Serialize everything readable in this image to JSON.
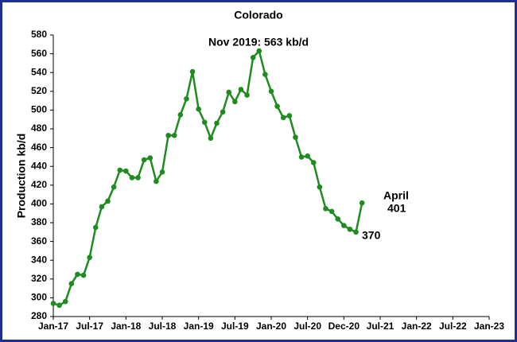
{
  "chart_data": {
    "type": "line",
    "title": "Colorado",
    "y_label": "Production kb/d",
    "categories": [
      "Jan-17",
      null,
      null,
      null,
      null,
      null,
      "Jul-17",
      null,
      null,
      null,
      null,
      null,
      "Jan-18",
      null,
      null,
      null,
      null,
      null,
      "Jul-18",
      null,
      null,
      null,
      null,
      null,
      "Jan-19",
      null,
      null,
      null,
      null,
      null,
      "Jul-19",
      null,
      null,
      null,
      null,
      null,
      "Jan-20",
      null,
      null,
      null,
      null,
      null,
      "Jul-20",
      null,
      null,
      null,
      null,
      null,
      "Dec-20",
      null,
      null,
      null,
      null,
      null,
      "Jul-21",
      null,
      null,
      null,
      null,
      null,
      "Jan-22",
      null,
      null,
      null,
      null,
      null,
      "Jul-22",
      null,
      null,
      null,
      null,
      null,
      "Jan-23"
    ],
    "series": [
      {
        "name": "Colorado",
        "color": "#1e8c1e",
        "values": [
          294,
          292,
          296,
          315,
          325,
          324,
          343,
          375,
          397,
          403,
          418,
          436,
          435,
          428,
          428,
          447,
          449,
          424,
          434,
          473,
          473,
          495,
          512,
          541,
          501,
          487,
          470,
          486,
          498,
          519,
          509,
          522,
          516,
          556,
          563,
          538,
          520,
          504,
          492,
          494,
          471,
          450,
          451,
          444,
          418,
          395,
          392,
          384,
          377,
          373,
          370,
          401,
          null,
          null,
          null,
          null,
          null,
          null,
          null,
          null,
          null,
          null,
          null,
          null,
          null,
          null,
          null,
          null,
          null,
          null,
          null,
          null,
          null
        ]
      }
    ],
    "ylim": [
      280,
      580
    ],
    "yticks": [
      280,
      300,
      320,
      340,
      360,
      380,
      400,
      420,
      440,
      460,
      480,
      500,
      520,
      540,
      560,
      580
    ],
    "annotations": [
      "Nov 2019:  563 kb/d",
      "April",
      "401",
      "370"
    ]
  }
}
